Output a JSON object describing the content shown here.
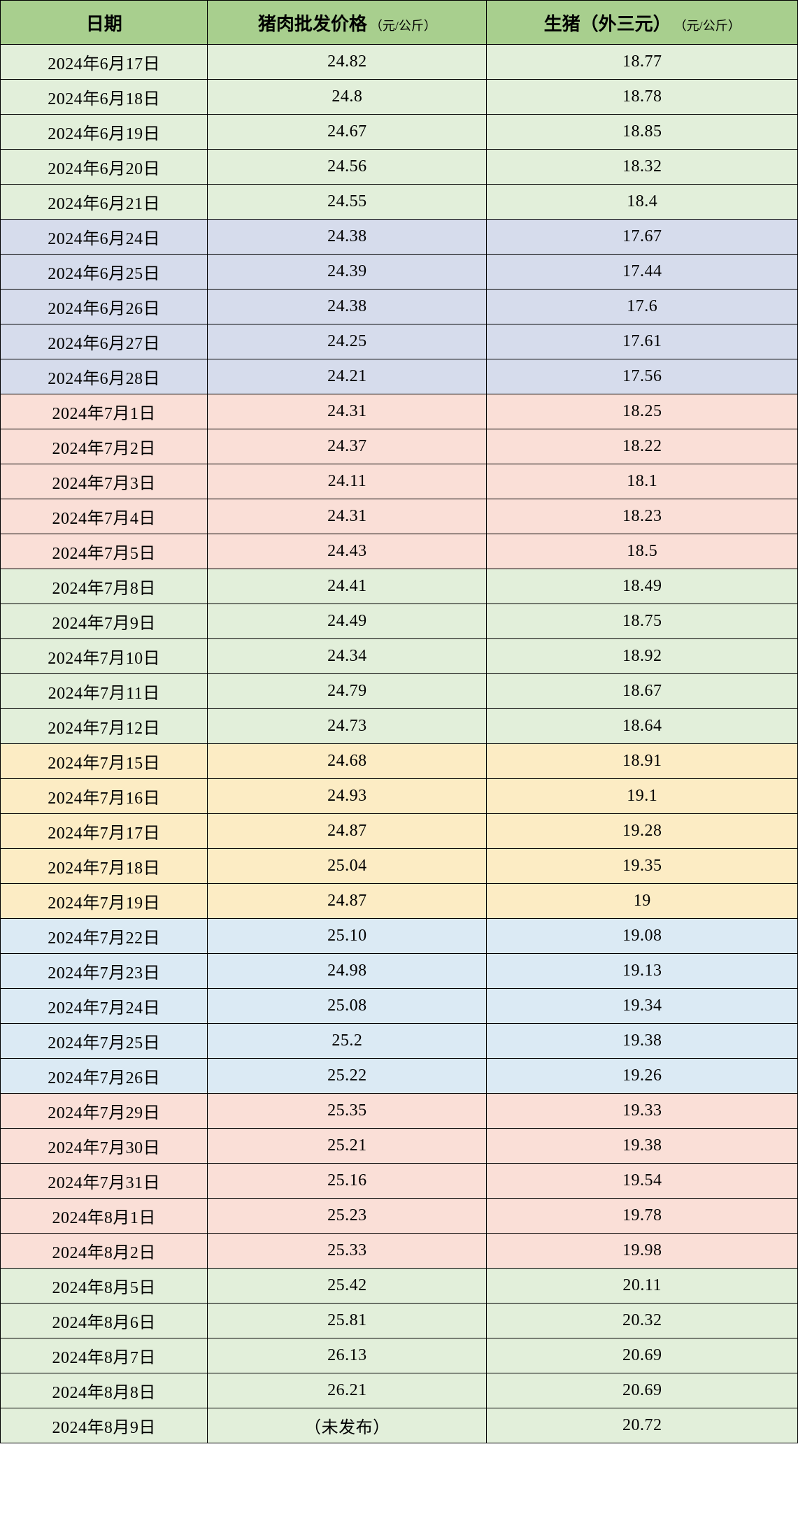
{
  "table": {
    "type": "table",
    "header_bg": "#a8cf8e",
    "border_color": "#000000",
    "font_family": "SimSun",
    "header_fontsize_big": 26,
    "header_fontsize_small": 18,
    "cell_fontsize": 24,
    "columns": [
      {
        "label_big": "日期",
        "label_small": ""
      },
      {
        "label_big": "猪肉批发价格",
        "label_small": "（元/公斤）"
      },
      {
        "label_big": "生猪（外三元）",
        "label_small": "（元/公斤）"
      }
    ],
    "column_widths_pct": [
      26,
      35,
      39
    ],
    "row_groups_bg": {
      "green": "#e2efda",
      "purple": "#d6dcec",
      "pink": "#fadfd7",
      "yellow": "#fcecc4",
      "blue": "#dbeaf4"
    },
    "rows": [
      {
        "date": "2024年6月17日",
        "p1": "24.82",
        "p2": "18.77",
        "bg": "green"
      },
      {
        "date": "2024年6月18日",
        "p1": "24.8",
        "p2": "18.78",
        "bg": "green"
      },
      {
        "date": "2024年6月19日",
        "p1": "24.67",
        "p2": "18.85",
        "bg": "green"
      },
      {
        "date": "2024年6月20日",
        "p1": "24.56",
        "p2": "18.32",
        "bg": "green"
      },
      {
        "date": "2024年6月21日",
        "p1": "24.55",
        "p2": "18.4",
        "bg": "green"
      },
      {
        "date": "2024年6月24日",
        "p1": "24.38",
        "p2": "17.67",
        "bg": "purple"
      },
      {
        "date": "2024年6月25日",
        "p1": "24.39",
        "p2": "17.44",
        "bg": "purple"
      },
      {
        "date": "2024年6月26日",
        "p1": "24.38",
        "p2": "17.6",
        "bg": "purple"
      },
      {
        "date": "2024年6月27日",
        "p1": "24.25",
        "p2": "17.61",
        "bg": "purple"
      },
      {
        "date": "2024年6月28日",
        "p1": "24.21",
        "p2": "17.56",
        "bg": "purple"
      },
      {
        "date": "2024年7月1日",
        "p1": "24.31",
        "p2": "18.25",
        "bg": "pink"
      },
      {
        "date": "2024年7月2日",
        "p1": "24.37",
        "p2": "18.22",
        "bg": "pink"
      },
      {
        "date": "2024年7月3日",
        "p1": "24.11",
        "p2": "18.1",
        "bg": "pink"
      },
      {
        "date": "2024年7月4日",
        "p1": "24.31",
        "p2": "18.23",
        "bg": "pink"
      },
      {
        "date": "2024年7月5日",
        "p1": "24.43",
        "p2": "18.5",
        "bg": "pink"
      },
      {
        "date": "2024年7月8日",
        "p1": "24.41",
        "p2": "18.49",
        "bg": "green"
      },
      {
        "date": "2024年7月9日",
        "p1": "24.49",
        "p2": "18.75",
        "bg": "green"
      },
      {
        "date": "2024年7月10日",
        "p1": "24.34",
        "p2": "18.92",
        "bg": "green"
      },
      {
        "date": "2024年7月11日",
        "p1": "24.79",
        "p2": "18.67",
        "bg": "green"
      },
      {
        "date": "2024年7月12日",
        "p1": "24.73",
        "p2": "18.64",
        "bg": "green"
      },
      {
        "date": "2024年7月15日",
        "p1": "24.68",
        "p2": "18.91",
        "bg": "yellow"
      },
      {
        "date": "2024年7月16日",
        "p1": "24.93",
        "p2": "19.1",
        "bg": "yellow"
      },
      {
        "date": "2024年7月17日",
        "p1": "24.87",
        "p2": "19.28",
        "bg": "yellow"
      },
      {
        "date": "2024年7月18日",
        "p1": "25.04",
        "p2": "19.35",
        "bg": "yellow"
      },
      {
        "date": "2024年7月19日",
        "p1": "24.87",
        "p2": "19",
        "bg": "yellow"
      },
      {
        "date": "2024年7月22日",
        "p1": "25.10",
        "p2": "19.08",
        "bg": "blue"
      },
      {
        "date": "2024年7月23日",
        "p1": "24.98",
        "p2": "19.13",
        "bg": "blue"
      },
      {
        "date": "2024年7月24日",
        "p1": "25.08",
        "p2": "19.34",
        "bg": "blue"
      },
      {
        "date": "2024年7月25日",
        "p1": "25.2",
        "p2": "19.38",
        "bg": "blue"
      },
      {
        "date": "2024年7月26日",
        "p1": "25.22",
        "p2": "19.26",
        "bg": "blue"
      },
      {
        "date": "2024年7月29日",
        "p1": "25.35",
        "p2": "19.33",
        "bg": "pink"
      },
      {
        "date": "2024年7月30日",
        "p1": "25.21",
        "p2": "19.38",
        "bg": "pink"
      },
      {
        "date": "2024年7月31日",
        "p1": "25.16",
        "p2": "19.54",
        "bg": "pink"
      },
      {
        "date": "2024年8月1日",
        "p1": "25.23",
        "p2": "19.78",
        "bg": "pink"
      },
      {
        "date": "2024年8月2日",
        "p1": "25.33",
        "p2": "19.98",
        "bg": "pink"
      },
      {
        "date": "2024年8月5日",
        "p1": "25.42",
        "p2": "20.11",
        "bg": "green"
      },
      {
        "date": "2024年8月6日",
        "p1": "25.81",
        "p2": "20.32",
        "bg": "green"
      },
      {
        "date": "2024年8月7日",
        "p1": "26.13",
        "p2": "20.69",
        "bg": "green"
      },
      {
        "date": "2024年8月8日",
        "p1": "26.21",
        "p2": "20.69",
        "bg": "green"
      },
      {
        "date": "2024年8月9日",
        "p1": "（未发布）",
        "p2": "20.72",
        "bg": "green"
      }
    ]
  }
}
